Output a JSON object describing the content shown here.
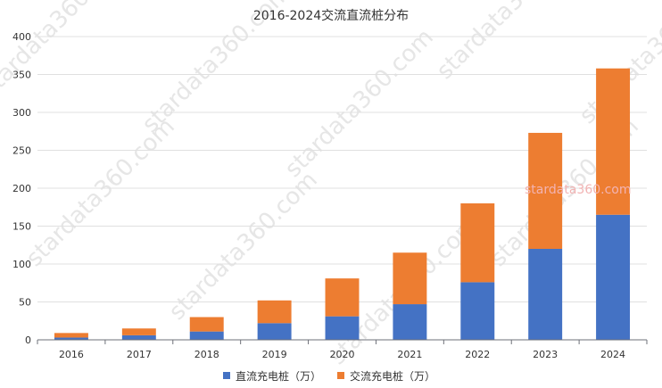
{
  "chart_data": {
    "type": "bar",
    "stacked": true,
    "title": "2016-2024交流直流桩分布",
    "categories": [
      "2016",
      "2017",
      "2018",
      "2019",
      "2020",
      "2021",
      "2022",
      "2023",
      "2024"
    ],
    "series": [
      {
        "name": "直流充电桩（万）",
        "color": "#4472c4",
        "values": [
          3,
          6,
          11,
          22,
          31,
          47,
          76,
          120,
          165
        ]
      },
      {
        "name": "交流充电桩（万）",
        "color": "#ed7d31",
        "values": [
          6,
          9,
          19,
          30,
          50,
          68,
          104,
          153,
          193
        ]
      }
    ],
    "ylim": [
      0,
      400
    ],
    "yticks": [
      0,
      50,
      100,
      150,
      200,
      250,
      300,
      350,
      400
    ],
    "grid": true,
    "legend_position": "bottom"
  },
  "watermark": {
    "text": "stardata360.com",
    "highlight_text": "stardata360.com"
  }
}
